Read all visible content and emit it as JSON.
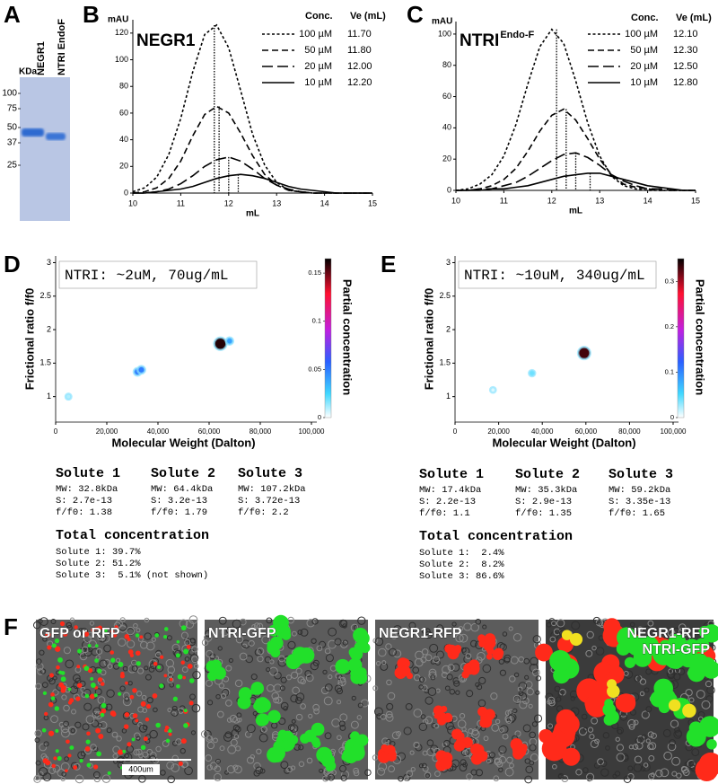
{
  "panel_labels": [
    "A",
    "B",
    "C",
    "D",
    "E",
    "F"
  ],
  "gel": {
    "unit": "KDa",
    "lanes": [
      "NEGR1",
      "NTRI EndoF"
    ],
    "ladder": [
      "100",
      "75",
      "50",
      "37",
      "25"
    ]
  },
  "chart_data": [
    {
      "type": "line",
      "title": "NEGR1",
      "ylabel": "mAU",
      "xlabel": "mL",
      "legend_headers": [
        "Conc.",
        "Ve (mL)"
      ],
      "x": [
        10,
        10.25,
        10.5,
        10.75,
        11,
        11.25,
        11.5,
        11.75,
        12,
        12.25,
        12.5,
        12.75,
        13,
        13.25,
        13.5,
        13.75,
        14,
        14.25,
        14.5,
        14.75,
        15
      ],
      "series": [
        {
          "name": "100 µM",
          "ve": {
            "value": 11.7,
            "label": "11.70"
          },
          "color": "#000000",
          "values": [
            1,
            4,
            12,
            29,
            56,
            91,
            119,
            126,
            109,
            77,
            44,
            21,
            8,
            2,
            1,
            0,
            0,
            0,
            0,
            0,
            0
          ]
        },
        {
          "name": "50 µM",
          "ve": {
            "value": 11.8,
            "label": "11.80"
          },
          "color": "#000000",
          "values": [
            0,
            1,
            4,
            11,
            24,
            43,
            59,
            65,
            60,
            45,
            28,
            14,
            6,
            2,
            1,
            0,
            0,
            0,
            0,
            0,
            0
          ]
        },
        {
          "name": "20 µM",
          "ve": {
            "value": 12.0,
            "label": "12.00"
          },
          "color": "#000000",
          "values": [
            0,
            0,
            1,
            3,
            7,
            13,
            20,
            25,
            27,
            24,
            18,
            11,
            6,
            3,
            1,
            0,
            0,
            0,
            0,
            0,
            0
          ]
        },
        {
          "name": "10 µM",
          "ve": {
            "value": 12.2,
            "label": "12.20"
          },
          "color": "#000000",
          "values": [
            0,
            0,
            1,
            2,
            3,
            5,
            8,
            11,
            13,
            14,
            13,
            11,
            8,
            5,
            3,
            2,
            1,
            0,
            0,
            0,
            0
          ]
        }
      ],
      "xlim": [
        10,
        15
      ],
      "ylim": [
        0,
        130
      ],
      "xticks": [
        10,
        11,
        12,
        13,
        14,
        15
      ],
      "yticks": [
        0,
        20,
        40,
        60,
        80,
        100,
        120
      ]
    },
    {
      "type": "line",
      "title": "NTRI",
      "title_superscript": "Endo-F",
      "ylabel": "mAU",
      "xlabel": "mL",
      "legend_headers": [
        "Conc.",
        "Ve (mL)"
      ],
      "x": [
        10,
        10.25,
        10.5,
        10.75,
        11,
        11.25,
        11.5,
        11.75,
        12,
        12.25,
        12.5,
        12.75,
        13,
        13.25,
        13.5,
        13.75,
        14,
        14.25,
        14.5,
        14.75,
        15
      ],
      "series": [
        {
          "name": "100 µM",
          "ve": {
            "value": 12.1,
            "label": "12.10"
          },
          "color": "#000000",
          "values": [
            0,
            1,
            4,
            10,
            22,
            42,
            68,
            92,
            103,
            94,
            70,
            43,
            22,
            9,
            3,
            1,
            0,
            0,
            0,
            0,
            0
          ]
        },
        {
          "name": "50 µM",
          "ve": {
            "value": 12.3,
            "label": "12.30"
          },
          "color": "#000000",
          "values": [
            0,
            0,
            1,
            3,
            7,
            14,
            25,
            38,
            48,
            52,
            45,
            33,
            20,
            10,
            4,
            2,
            1,
            0,
            0,
            0,
            0
          ]
        },
        {
          "name": "20 µM",
          "ve": {
            "value": 12.5,
            "label": "12.50"
          },
          "color": "#000000",
          "values": [
            0,
            0,
            1,
            1,
            3,
            5,
            9,
            14,
            19,
            23,
            24,
            21,
            16,
            10,
            6,
            3,
            1,
            1,
            0,
            0,
            0
          ]
        },
        {
          "name": "10 µM",
          "ve": {
            "value": 12.8,
            "label": "12.80"
          },
          "color": "#000000",
          "values": [
            0,
            0,
            0,
            1,
            1,
            2,
            3,
            5,
            7,
            9,
            10,
            11,
            11,
            9,
            7,
            5,
            3,
            2,
            1,
            0,
            0
          ]
        }
      ],
      "xlim": [
        10,
        15
      ],
      "ylim": [
        0,
        108
      ],
      "xticks": [
        10,
        11,
        12,
        13,
        14,
        15
      ],
      "yticks": [
        0,
        20,
        40,
        60,
        80,
        100
      ]
    },
    {
      "type": "scatter",
      "annotation": "NTRI: ~2uM, 70ug/mL",
      "xlabel": "Molecular Weight (Dalton)",
      "ylabel": "Frictional ratio f/f0",
      "colorbar_label": "Partial concentration",
      "x": [
        5000,
        32000,
        33500,
        64400,
        68000
      ],
      "y": [
        1.0,
        1.37,
        1.4,
        1.79,
        1.83
      ],
      "values": [
        0.01,
        0.05,
        0.05,
        0.16,
        0.04
      ],
      "xlim": [
        0,
        100000
      ],
      "ylim": [
        0.62,
        3.1
      ],
      "xticks": [
        0,
        {
          "value": 20000,
          "label": "20,000"
        },
        {
          "value": 40000,
          "label": "40,000"
        },
        {
          "value": 60000,
          "label": "60,000"
        },
        {
          "value": 80000,
          "label": "80,000"
        },
        {
          "value": 100000,
          "label": "100,000"
        }
      ],
      "yticks": [
        1,
        1.5,
        2,
        2.5,
        3
      ],
      "clim": [
        0,
        0.165
      ],
      "cticks": [
        0,
        0.05,
        0.1,
        0.15
      ]
    },
    {
      "type": "scatter",
      "annotation": "NTRI: ~10uM, 340ug/mL",
      "xlabel": "Molecular Weight (Dalton)",
      "ylabel": "Frictional ratio f/f0",
      "colorbar_label": "Partial concentration",
      "x": [
        17400,
        35300,
        59200
      ],
      "y": [
        1.1,
        1.35,
        1.65
      ],
      "values": [
        0.01,
        0.04,
        0.33
      ],
      "xlim": [
        0,
        100000
      ],
      "ylim": [
        0.62,
        3.1
      ],
      "xticks": [
        0,
        {
          "value": 20000,
          "label": "20,000"
        },
        {
          "value": 40000,
          "label": "40,000"
        },
        {
          "value": 60000,
          "label": "60,000"
        },
        {
          "value": 80000,
          "label": "80,000"
        },
        {
          "value": 100000,
          "label": "100,000"
        }
      ],
      "yticks": [
        1,
        1.5,
        2,
        2.5,
        3
      ],
      "clim": [
        0,
        0.35
      ],
      "cticks": [
        0,
        0.1,
        0.2,
        0.3
      ]
    }
  ],
  "solutes": [
    {
      "columns": [
        {
          "name": "Solute 1",
          "lines": [
            "MW: 32.8kDa",
            "S: 2.7e-13",
            "f/f0: 1.38"
          ]
        },
        {
          "name": "Solute 2",
          "lines": [
            "MW: 64.4kDa",
            "S: 3.2e-13",
            "f/f0: 1.79"
          ]
        },
        {
          "name": "Solute 3",
          "lines": [
            "MW: 107.2kDa",
            "S: 3.72e-13",
            "f/f0: 2.2"
          ]
        }
      ],
      "total_title": "Total concentration",
      "total_lines": [
        "Solute 1: 39.7%",
        "Solute 2: 51.2%",
        "Solute 3:  5.1% (not shown)"
      ]
    },
    {
      "columns": [
        {
          "name": "Solute 1",
          "lines": [
            "MW: 17.4kDa",
            "S: 2.2e-13",
            "f/f0: 1.1"
          ]
        },
        {
          "name": "Solute 2",
          "lines": [
            "MW: 35.3kDa",
            "S: 2.9e-13",
            "f/f0: 1.35"
          ]
        },
        {
          "name": "Solute 3",
          "lines": [
            "MW: 59.2kDa",
            "S: 3.35e-13",
            "f/f0: 1.65"
          ]
        }
      ],
      "total_title": "Total concentration",
      "total_lines": [
        "Solute 1:  2.4%",
        "Solute 2:  8.2%",
        "Solute 3: 86.6%"
      ]
    }
  ],
  "images": {
    "labels": [
      "GFP or RFP",
      "NTRI-GFP",
      "NEGR1-RFP",
      [
        "NEGR1-RFP",
        "NTRI-GFP"
      ]
    ],
    "scale_bar": "400um"
  }
}
